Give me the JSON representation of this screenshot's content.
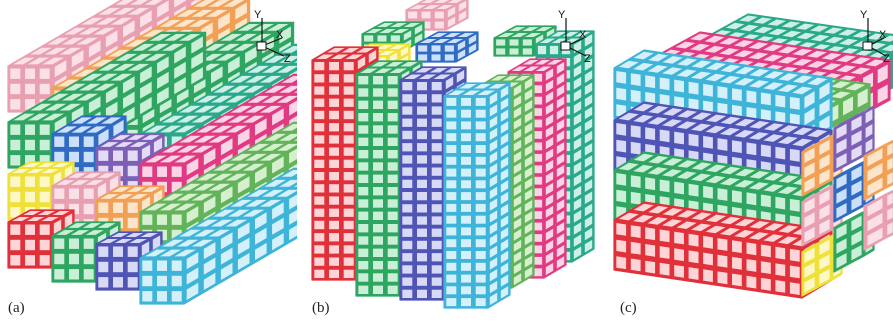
{
  "figure": {
    "panels": [
      {
        "caption": "(a)",
        "axes": {
          "y": "Y",
          "x": "X",
          "z": "Z"
        }
      },
      {
        "caption": "(b)",
        "axes": {
          "y": "Y",
          "x": "X",
          "z": "Z"
        }
      },
      {
        "caption": "(c)",
        "axes": {
          "y": "Y",
          "x": "X",
          "z": "Z"
        }
      }
    ]
  },
  "colors": {
    "red": "#e0303a",
    "red_light": "#ffd4d6",
    "pink": "#e8a0b0",
    "pink_light": "#fbe0e7",
    "orange": "#f2a055",
    "orange_light": "#fde5cc",
    "green": "#2ea560",
    "green_light": "#c9efd6",
    "light_green": "#62b35a",
    "light_green_light": "#d6f0cf",
    "blue": "#2f6bc2",
    "blue_light": "#cde0fb",
    "purple": "#7d5fb6",
    "purple_light": "#e4dbf7",
    "magenta": "#e03a82",
    "magenta_light": "#fbd5e6",
    "cyan": "#3fb4d9",
    "cyan_light": "#d4f0fb",
    "yellow": "#f0e13a",
    "yellow_light": "#fdf8c6",
    "indigo": "#4f55b5",
    "indigo_light": "#d7d9f6",
    "teal": "#2aa98a",
    "teal_light": "#ccefe6"
  }
}
